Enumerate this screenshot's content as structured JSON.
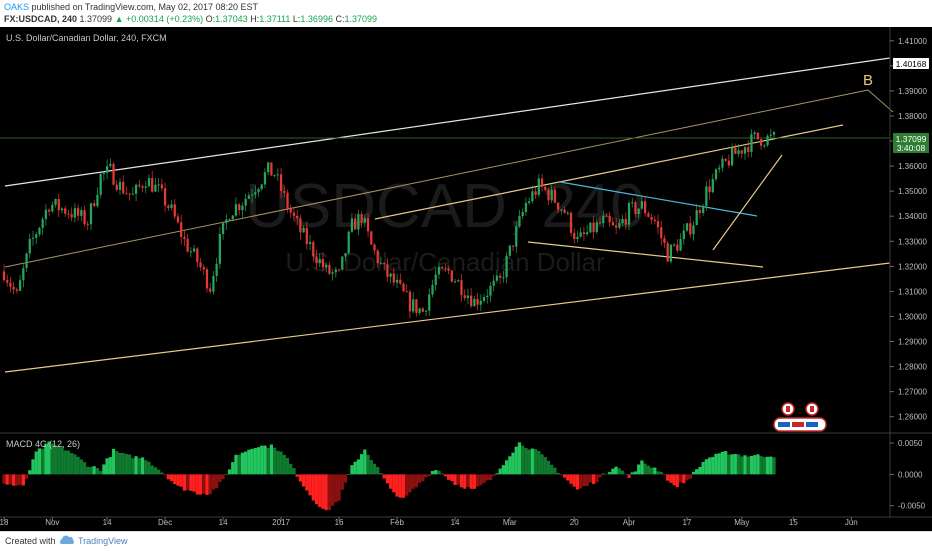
{
  "header": {
    "author": "OAKS",
    "published": "published on TradingView.com, May 02, 2017 08:20 EST",
    "symbol": "FX:USDCAD, 240",
    "last": "1.37099",
    "change": "+0.00314 (+0.23%)",
    "o_label": "O:",
    "o_value": "1.37043",
    "h_label": "H:",
    "h_value": "1.37111",
    "l_label": "L:",
    "l_value": "1.36996",
    "c_label": "C:",
    "c_value": "1.37099"
  },
  "footer": {
    "created_with": "Created with",
    "brand": "TradingView"
  },
  "chart_data": {
    "type": "candlestick",
    "title": "U.S. Dollar/Canadian Dollar, 240, FXCM",
    "watermark_symbol": "USDCAD, 240",
    "watermark_name": "U.S. Dollar/Canadian Dollar",
    "y_ticks": [
      "1.41000",
      "1.40000",
      "1.39000",
      "1.38000",
      "1.37000",
      "1.36000",
      "1.35000",
      "1.34000",
      "1.33000",
      "1.32000",
      "1.31000",
      "1.30000",
      "1.29000",
      "1.28000",
      "1.27000",
      "1.26000"
    ],
    "ylim": [
      1.2535,
      1.4155
    ],
    "x_ticks": [
      "18",
      "Nov",
      "14",
      "Dec",
      "14",
      "2017",
      "16",
      "Feb",
      "14",
      "Mar",
      "20",
      "Apr",
      "17",
      "May",
      "15",
      "Jun"
    ],
    "x_tick_index": [
      0,
      15,
      32,
      50,
      68,
      86,
      104,
      122,
      140,
      157,
      177,
      194,
      212,
      229,
      245,
      263
    ],
    "n_candles": 240,
    "price_labels": {
      "high_line": "1.40168",
      "last_price": "1.37099",
      "countdown": "3:40:08"
    },
    "annotation": "B",
    "close_path": [
      [
        0,
        1.318
      ],
      [
        4,
        1.308
      ],
      [
        8,
        1.328
      ],
      [
        14,
        1.345
      ],
      [
        20,
        1.342
      ],
      [
        26,
        1.338
      ],
      [
        30,
        1.356
      ],
      [
        33,
        1.358
      ],
      [
        36,
        1.352
      ],
      [
        40,
        1.348
      ],
      [
        44,
        1.355
      ],
      [
        48,
        1.35
      ],
      [
        52,
        1.342
      ],
      [
        56,
        1.33
      ],
      [
        60,
        1.322
      ],
      [
        64,
        1.312
      ],
      [
        67,
        1.33
      ],
      [
        70,
        1.342
      ],
      [
        74,
        1.346
      ],
      [
        78,
        1.352
      ],
      [
        82,
        1.358
      ],
      [
        84,
        1.357
      ],
      [
        88,
        1.344
      ],
      [
        92,
        1.334
      ],
      [
        96,
        1.326
      ],
      [
        100,
        1.318
      ],
      [
        104,
        1.316
      ],
      [
        108,
        1.336
      ],
      [
        111,
        1.34
      ],
      [
        114,
        1.328
      ],
      [
        118,
        1.318
      ],
      [
        122,
        1.312
      ],
      [
        126,
        1.305
      ],
      [
        130,
        1.302
      ],
      [
        134,
        1.316
      ],
      [
        138,
        1.318
      ],
      [
        142,
        1.312
      ],
      [
        146,
        1.306
      ],
      [
        150,
        1.31
      ],
      [
        154,
        1.314
      ],
      [
        158,
        1.33
      ],
      [
        162,
        1.345
      ],
      [
        166,
        1.352
      ],
      [
        170,
        1.348
      ],
      [
        174,
        1.342
      ],
      [
        178,
        1.33
      ],
      [
        182,
        1.334
      ],
      [
        186,
        1.338
      ],
      [
        190,
        1.334
      ],
      [
        194,
        1.342
      ],
      [
        198,
        1.344
      ],
      [
        202,
        1.338
      ],
      [
        206,
        1.325
      ],
      [
        210,
        1.33
      ],
      [
        214,
        1.338
      ],
      [
        218,
        1.35
      ],
      [
        222,
        1.358
      ],
      [
        226,
        1.364
      ],
      [
        230,
        1.368
      ],
      [
        233,
        1.371
      ]
    ],
    "macd": {
      "name": "MACD 4C (12, 26)",
      "ylim": [
        -0.0068,
        0.0066
      ],
      "y_ticks": [
        "0.0050",
        "0.0000",
        "-0.0050"
      ],
      "y_tick_values": [
        0.005,
        0.0,
        -0.005
      ],
      "path": [
        [
          0,
          -0.0015
        ],
        [
          6,
          -0.002
        ],
        [
          10,
          0.0035
        ],
        [
          14,
          0.005
        ],
        [
          20,
          0.0038
        ],
        [
          26,
          0.0015
        ],
        [
          30,
          0.0008
        ],
        [
          34,
          0.0038
        ],
        [
          38,
          0.003
        ],
        [
          44,
          0.0025
        ],
        [
          50,
          0.0
        ],
        [
          54,
          -0.002
        ],
        [
          60,
          -0.003
        ],
        [
          64,
          -0.003
        ],
        [
          68,
          -0.001
        ],
        [
          72,
          0.003
        ],
        [
          78,
          0.0045
        ],
        [
          84,
          0.0045
        ],
        [
          88,
          0.0025
        ],
        [
          92,
          -0.001
        ],
        [
          96,
          -0.004
        ],
        [
          100,
          -0.006
        ],
        [
          104,
          -0.004
        ],
        [
          108,
          0.0012
        ],
        [
          112,
          0.004
        ],
        [
          116,
          0.001
        ],
        [
          120,
          -0.0025
        ],
        [
          124,
          -0.004
        ],
        [
          130,
          -0.001
        ],
        [
          134,
          0.001
        ],
        [
          140,
          -0.0015
        ],
        [
          146,
          -0.0025
        ],
        [
          152,
          -0.0005
        ],
        [
          156,
          0.0025
        ],
        [
          160,
          0.005
        ],
        [
          166,
          0.0035
        ],
        [
          172,
          0.0005
        ],
        [
          178,
          -0.0025
        ],
        [
          184,
          -0.001
        ],
        [
          190,
          0.0015
        ],
        [
          194,
          -0.0005
        ],
        [
          198,
          0.002
        ],
        [
          204,
          0.0005
        ],
        [
          208,
          -0.002
        ],
        [
          212,
          -0.001
        ],
        [
          218,
          0.0025
        ],
        [
          224,
          0.0035
        ],
        [
          230,
          0.003
        ],
        [
          233,
          0.003
        ]
      ]
    }
  }
}
